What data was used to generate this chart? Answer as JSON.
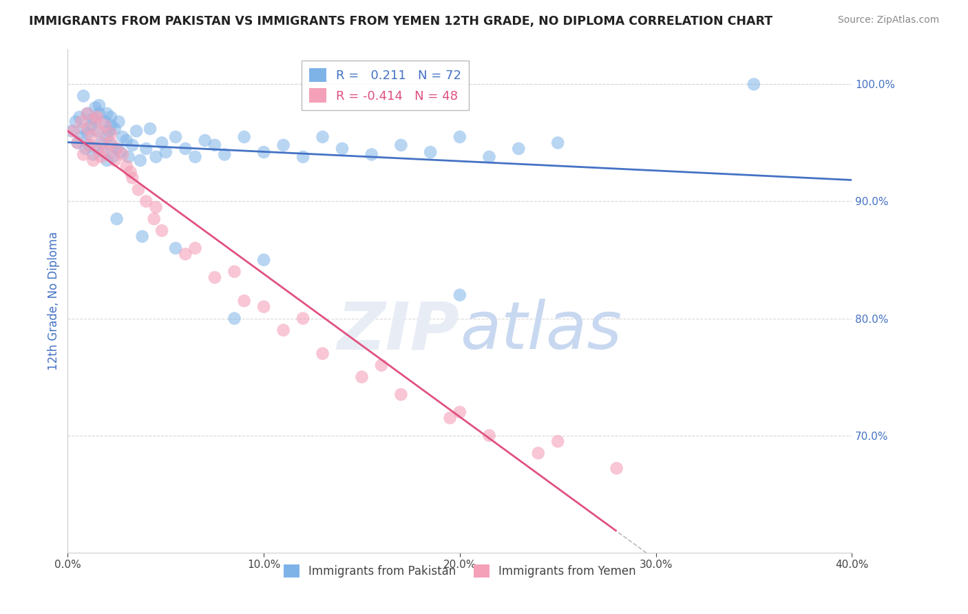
{
  "title": "IMMIGRANTS FROM PAKISTAN VS IMMIGRANTS FROM YEMEN 12TH GRADE, NO DIPLOMA CORRELATION CHART",
  "source": "Source: ZipAtlas.com",
  "ylabel": "12th Grade, No Diploma",
  "xlim": [
    0.0,
    0.4
  ],
  "ylim": [
    0.6,
    1.03
  ],
  "ytick_values": [
    0.7,
    0.8,
    0.9,
    1.0
  ],
  "xtick_values": [
    0.0,
    0.1,
    0.2,
    0.3,
    0.4
  ],
  "pak_R": 0.211,
  "pak_N": 72,
  "yemen_R": -0.414,
  "yemen_N": 48,
  "pak_line_color": "#4472C4",
  "yemen_line_color": "#E05080",
  "pak_scatter_color": "#7EB3E8",
  "yemen_scatter_color": "#F4A0B8",
  "background_color": "#FFFFFF",
  "grid_color": "#D8D8D8",
  "watermark_color": "#E8EDF5",
  "pakistan_points_x": [
    0.002,
    0.004,
    0.005,
    0.006,
    0.007,
    0.008,
    0.009,
    0.01,
    0.01,
    0.011,
    0.012,
    0.013,
    0.014,
    0.015,
    0.015,
    0.016,
    0.017,
    0.018,
    0.019,
    0.02,
    0.02,
    0.021,
    0.022,
    0.022,
    0.023,
    0.024,
    0.025,
    0.026,
    0.027,
    0.028,
    0.03,
    0.031,
    0.033,
    0.035,
    0.037,
    0.04,
    0.042,
    0.045,
    0.048,
    0.05,
    0.055,
    0.06,
    0.065,
    0.07,
    0.075,
    0.08,
    0.09,
    0.1,
    0.11,
    0.12,
    0.13,
    0.14,
    0.155,
    0.17,
    0.185,
    0.2,
    0.215,
    0.23,
    0.25,
    0.055,
    0.038,
    0.025,
    0.012,
    0.016,
    0.02,
    0.008,
    0.014,
    0.022,
    0.35,
    0.2,
    0.085,
    0.1
  ],
  "pakistan_points_y": [
    0.96,
    0.968,
    0.95,
    0.972,
    0.955,
    0.962,
    0.945,
    0.958,
    0.975,
    0.948,
    0.965,
    0.94,
    0.97,
    0.96,
    0.945,
    0.975,
    0.95,
    0.942,
    0.968,
    0.955,
    0.935,
    0.96,
    0.948,
    0.972,
    0.938,
    0.962,
    0.945,
    0.968,
    0.942,
    0.955,
    0.952,
    0.938,
    0.948,
    0.96,
    0.935,
    0.945,
    0.962,
    0.938,
    0.95,
    0.942,
    0.955,
    0.945,
    0.938,
    0.952,
    0.948,
    0.94,
    0.955,
    0.942,
    0.948,
    0.938,
    0.955,
    0.945,
    0.94,
    0.948,
    0.942,
    0.955,
    0.938,
    0.945,
    0.95,
    0.86,
    0.87,
    0.885,
    0.97,
    0.982,
    0.975,
    0.99,
    0.98,
    0.965,
    1.0,
    0.82,
    0.8,
    0.85
  ],
  "yemen_points_x": [
    0.003,
    0.005,
    0.007,
    0.008,
    0.01,
    0.011,
    0.012,
    0.013,
    0.014,
    0.015,
    0.016,
    0.017,
    0.018,
    0.019,
    0.02,
    0.022,
    0.024,
    0.025,
    0.028,
    0.03,
    0.033,
    0.036,
    0.04,
    0.044,
    0.048,
    0.06,
    0.075,
    0.09,
    0.11,
    0.13,
    0.15,
    0.17,
    0.195,
    0.215,
    0.24,
    0.015,
    0.022,
    0.01,
    0.032,
    0.045,
    0.065,
    0.085,
    0.12,
    0.16,
    0.2,
    0.25,
    0.28,
    0.1
  ],
  "yemen_points_y": [
    0.96,
    0.95,
    0.968,
    0.94,
    0.962,
    0.948,
    0.955,
    0.935,
    0.97,
    0.945,
    0.96,
    0.938,
    0.95,
    0.965,
    0.942,
    0.95,
    0.935,
    0.945,
    0.94,
    0.93,
    0.92,
    0.91,
    0.9,
    0.885,
    0.875,
    0.855,
    0.835,
    0.815,
    0.79,
    0.77,
    0.75,
    0.735,
    0.715,
    0.7,
    0.685,
    0.972,
    0.958,
    0.975,
    0.925,
    0.895,
    0.86,
    0.84,
    0.8,
    0.76,
    0.72,
    0.695,
    0.672,
    0.81
  ],
  "legend_box_color": "#FFFFFF",
  "legend_edge_color": "#AAAAAA"
}
